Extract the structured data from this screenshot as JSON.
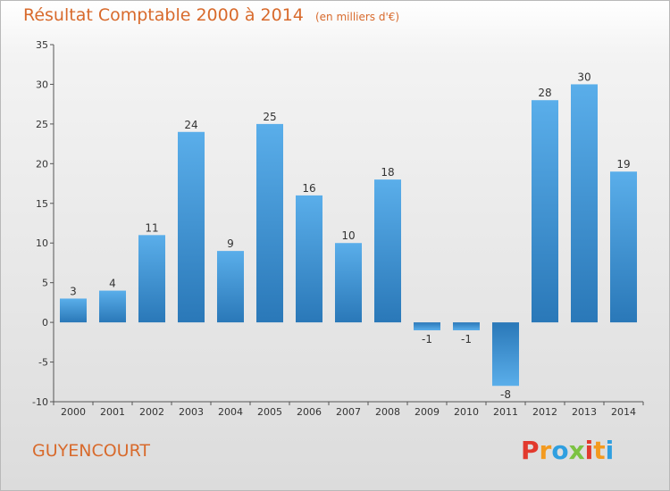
{
  "header": {
    "title": "Résultat Comptable 2000 à 2014",
    "unit": "(en milliers d'€)"
  },
  "footer": {
    "city": "GUYENCOURT",
    "logo_letters": [
      "P",
      "r",
      "o",
      "x",
      "i",
      "t",
      "i"
    ],
    "logo_colors": [
      "#e2392d",
      "#f39a1f",
      "#2f9fe0",
      "#7cc242",
      "#e2392d",
      "#f39a1f",
      "#2f9fe0"
    ]
  },
  "chart_data": {
    "type": "bar",
    "title": "Résultat Comptable 2000 à 2014",
    "subtitle": "(en milliers d'€)",
    "xlabel": "",
    "ylabel": "",
    "categories": [
      "2000",
      "2001",
      "2002",
      "2003",
      "2004",
      "2005",
      "2006",
      "2007",
      "2008",
      "2009",
      "2010",
      "2011",
      "2012",
      "2013",
      "2014"
    ],
    "values": [
      3,
      4,
      11,
      24,
      9,
      25,
      16,
      10,
      18,
      -1,
      -1,
      -8,
      28,
      30,
      19
    ],
    "value_labels": [
      "3",
      "4",
      "11",
      "24",
      "9",
      "25",
      "16",
      "10",
      "18",
      "-1",
      "-1",
      "-8",
      "28",
      "30",
      "19"
    ],
    "ylim": [
      -10,
      35
    ],
    "yticks": [
      -10,
      -5,
      0,
      5,
      10,
      15,
      20,
      25,
      30,
      35
    ],
    "ytick_labels": [
      "-10",
      "-5",
      "0",
      "5",
      "10",
      "15",
      "20",
      "25",
      "30",
      "35"
    ],
    "grid": false,
    "bar_color": "#4a9fe0"
  }
}
